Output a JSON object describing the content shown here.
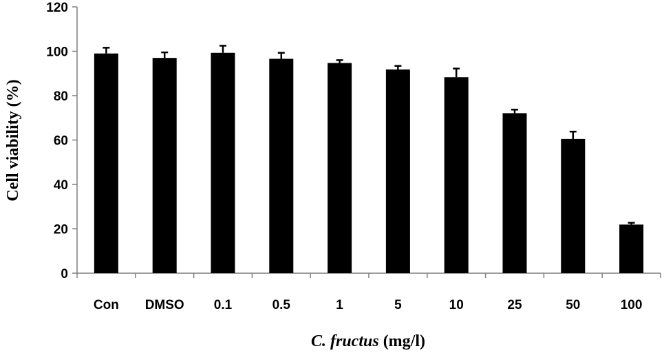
{
  "chart_data": {
    "type": "bar",
    "title": "",
    "xlabel": {
      "italic": "C. fructus",
      "normal": " (mg/l)"
    },
    "ylabel": "Cell viability (%)",
    "ylim": [
      0,
      120
    ],
    "yticks": [
      "0",
      "20",
      "40",
      "60",
      "80",
      "100",
      "120"
    ],
    "categories": [
      "Con",
      "DMSO",
      "0.1",
      "0.5",
      "1",
      "5",
      "10",
      "25",
      "50",
      "100"
    ],
    "values": [
      99,
      97,
      99.3,
      96.6,
      94.7,
      91.8,
      88.3,
      72.1,
      60.5,
      21.9
    ],
    "errors": [
      2.6,
      2.5,
      3.2,
      2.7,
      1.3,
      1.6,
      3.9,
      1.6,
      3.3,
      0.8
    ],
    "bar_color": "#000000",
    "grid": false,
    "legend": "none"
  }
}
